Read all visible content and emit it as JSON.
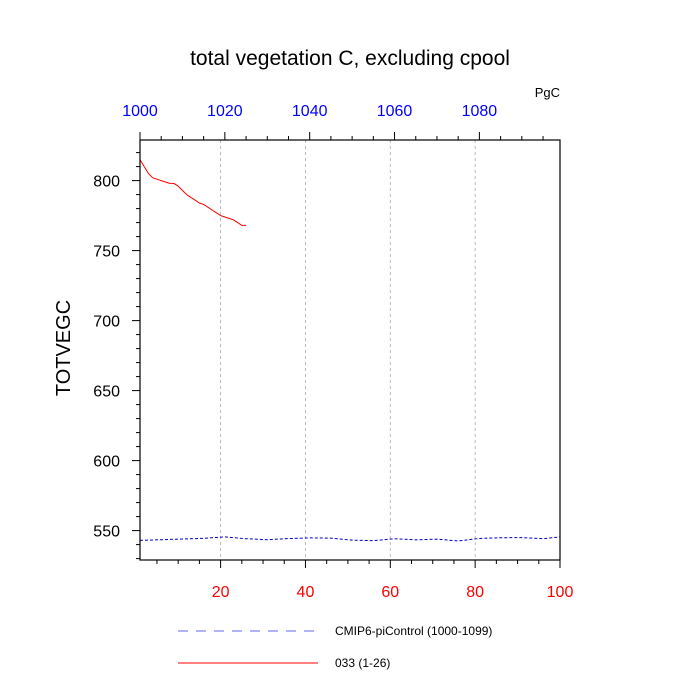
{
  "chart_data": {
    "type": "line",
    "title": "total vegetation C, excluding cpool",
    "units_label": "PgC",
    "ylabel": "TOTVEGC",
    "xlabel": "",
    "x_bottom": {
      "range": [
        1,
        100
      ],
      "ticks": [
        20,
        40,
        60,
        80,
        100
      ],
      "color": "#ff0000"
    },
    "x_top": {
      "range": [
        1000,
        1099
      ],
      "ticks": [
        1000,
        1020,
        1040,
        1060,
        1080
      ],
      "color": "#0000ff"
    },
    "ylim": [
      529,
      829
    ],
    "yticks": [
      550,
      600,
      650,
      700,
      750,
      800
    ],
    "grid": "vertical dashed at major x ticks",
    "legend_position": "bottom",
    "series": [
      {
        "name": "CMIP6-piControl (1000-1099)",
        "axis": "top",
        "color": "#0000cc",
        "style": "dashed",
        "x": [
          1000,
          1005,
          1010,
          1015,
          1020,
          1025,
          1030,
          1035,
          1040,
          1045,
          1050,
          1055,
          1060,
          1065,
          1070,
          1075,
          1080,
          1085,
          1090,
          1095,
          1099
        ],
        "y": [
          543,
          543.5,
          544,
          544.5,
          545.5,
          544.2,
          543.5,
          544.3,
          544.8,
          544.6,
          543.2,
          542.8,
          544.2,
          543.4,
          543.9,
          542.6,
          544.4,
          544.9,
          545,
          544.2,
          545.5
        ]
      },
      {
        "name": "033 (1-26)",
        "axis": "bottom",
        "color": "#ff0000",
        "style": "solid",
        "x": [
          1,
          2,
          3,
          4,
          5,
          6,
          7,
          8,
          9,
          10,
          11,
          12,
          13,
          14,
          15,
          16,
          17,
          18,
          19,
          20,
          21,
          22,
          23,
          24,
          25,
          26
        ],
        "y": [
          815,
          810,
          805,
          802,
          801,
          800,
          799,
          798,
          798,
          796,
          793,
          790,
          788,
          786,
          784,
          783,
          781,
          779,
          777,
          775,
          774,
          773,
          772,
          770,
          768,
          768
        ]
      }
    ]
  }
}
